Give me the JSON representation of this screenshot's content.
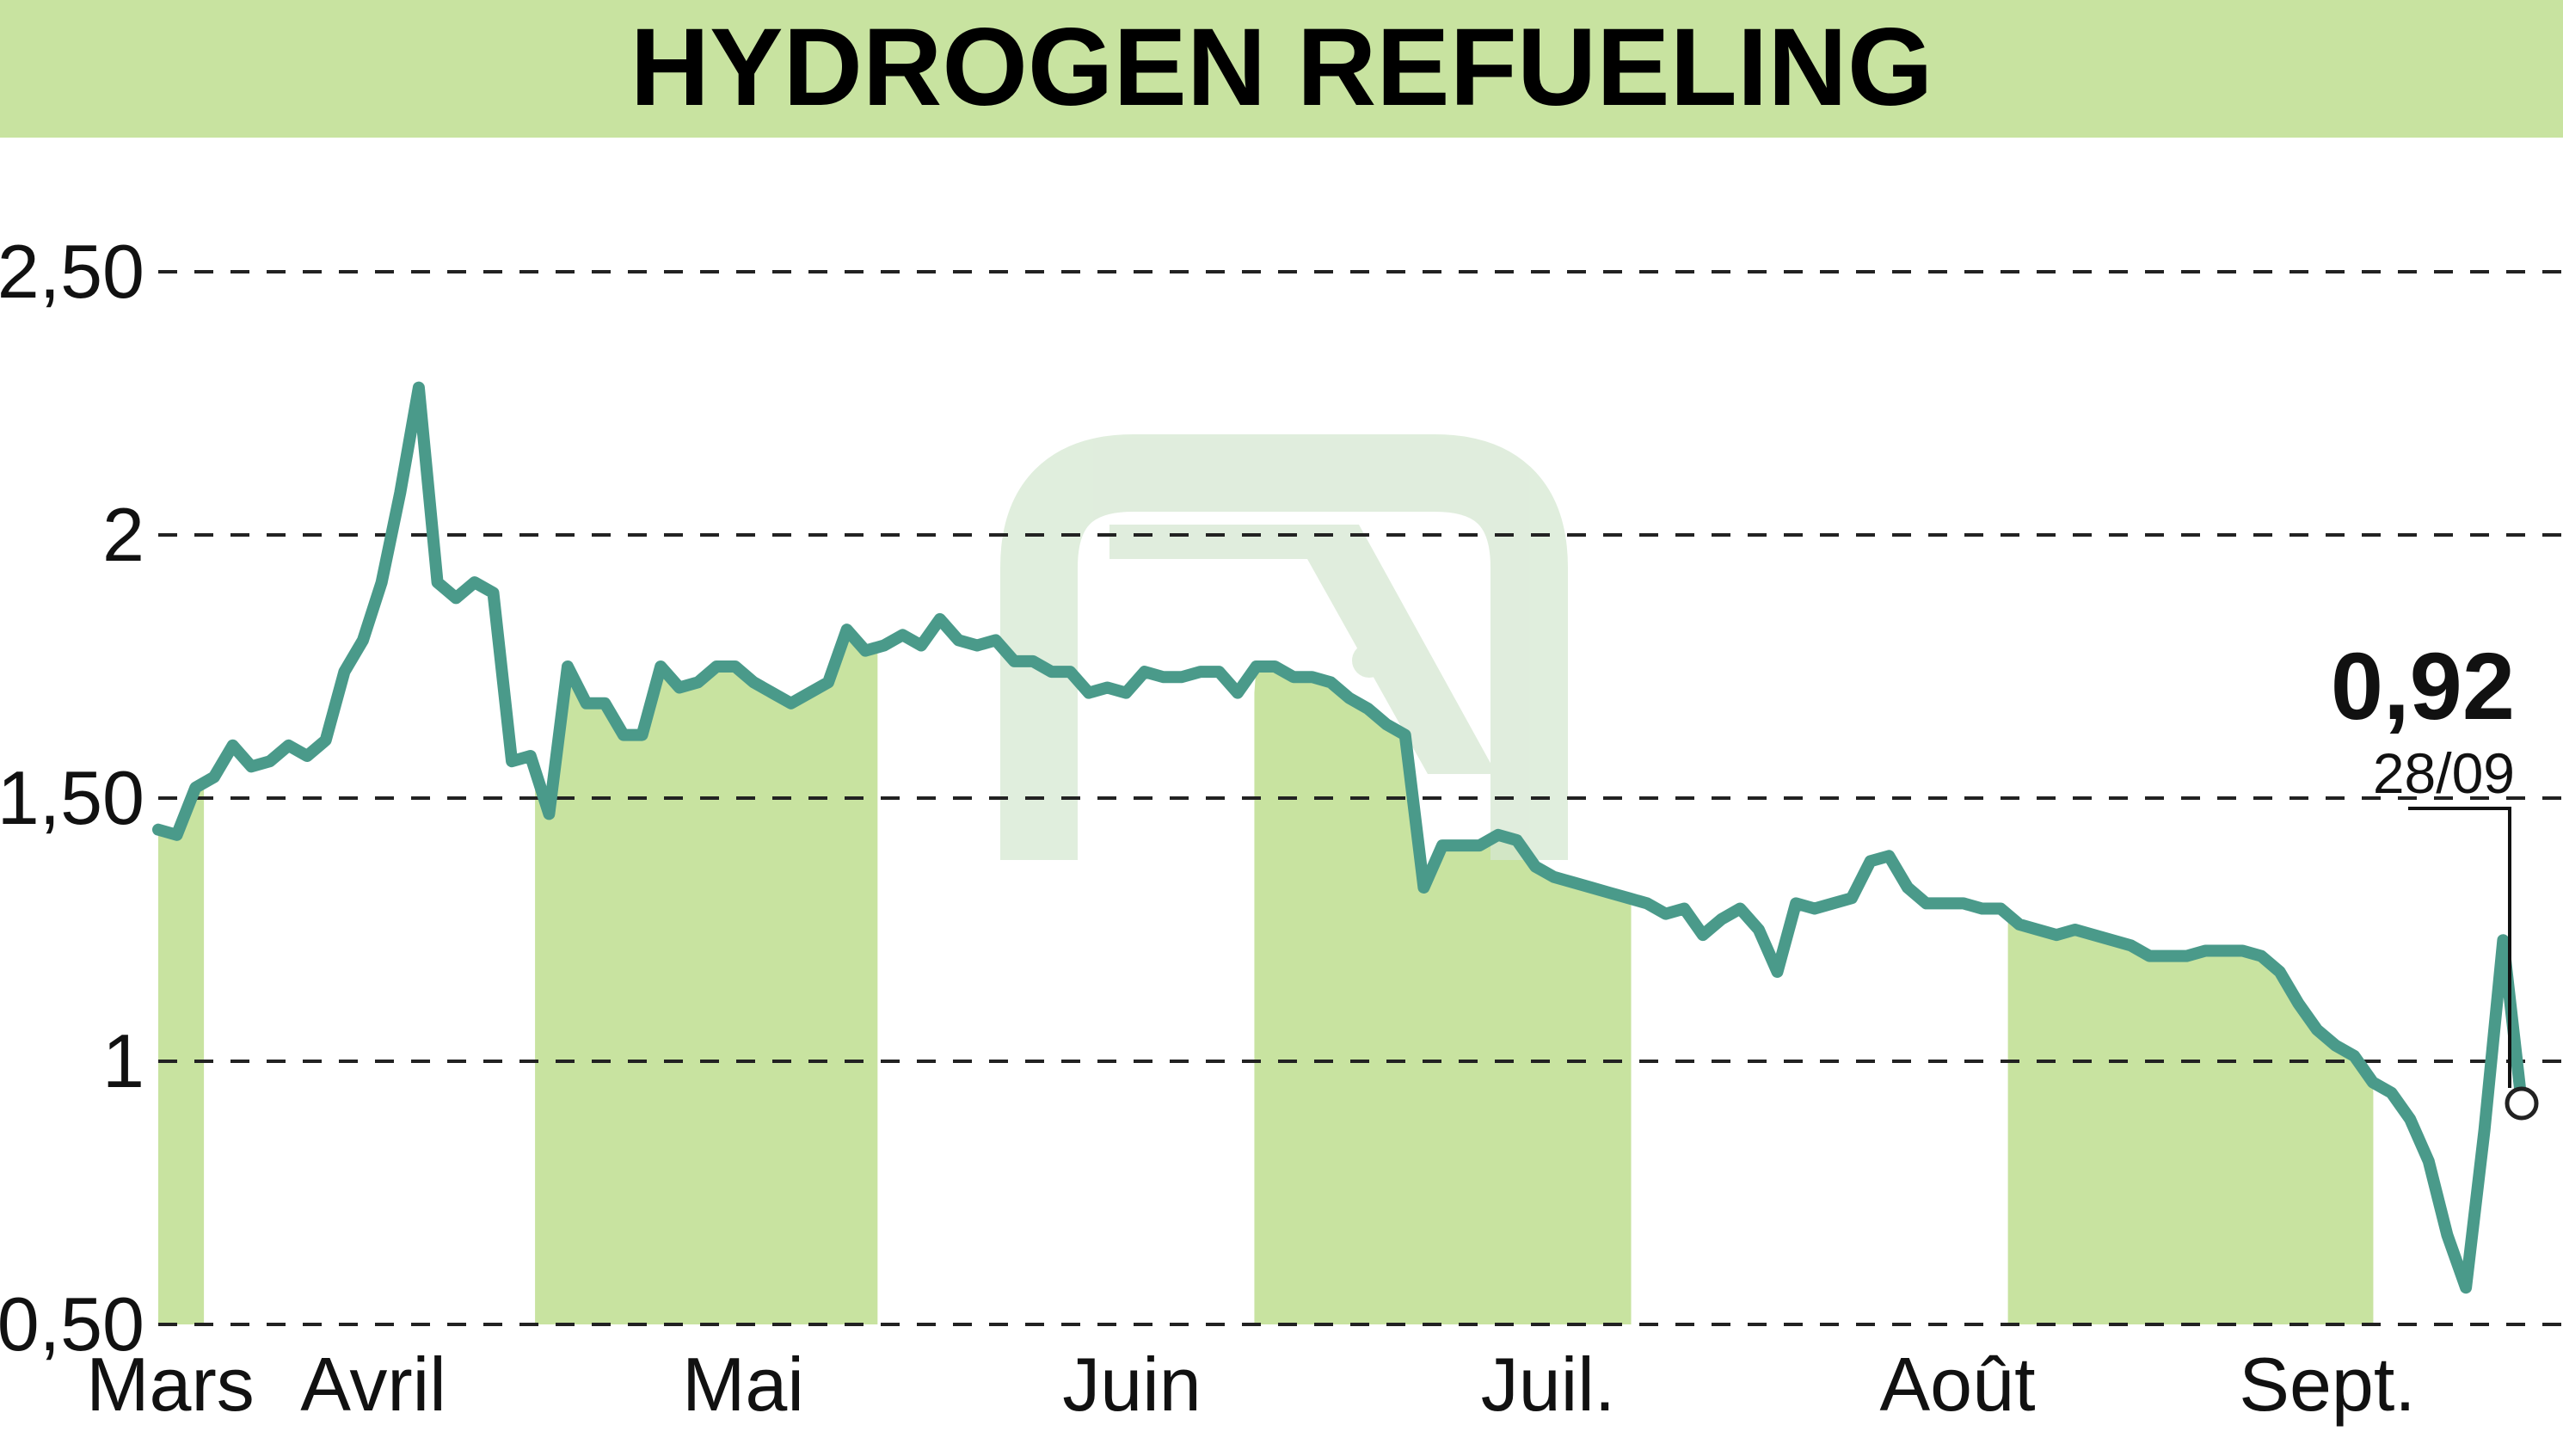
{
  "chart_data": {
    "type": "line",
    "title": "HYDROGEN REFUELING",
    "xlabel": "",
    "ylabel": "",
    "ylim": [
      0.5,
      2.5
    ],
    "y_ticks": [
      2.5,
      2,
      1.5,
      1,
      0.5
    ],
    "y_tick_labels": [
      "2,50",
      "2",
      "1,50",
      "1",
      "0,50"
    ],
    "grid": true,
    "months": [
      "Mars",
      "Avril",
      "Mai",
      "Juin",
      "Juil.",
      "Août",
      "Sept."
    ],
    "last_value_label": "0,92",
    "last_date_label": "28/09",
    "colors": {
      "line": "#4a9a8a",
      "band": "#c8e3a0",
      "header": "#c8e3a0",
      "watermark": "#d6e8d2",
      "grid": "#222222"
    },
    "series": [
      {
        "values": [
          1.44,
          1.43,
          1.52,
          1.54,
          1.6,
          1.56,
          1.57,
          1.6,
          1.58,
          1.61,
          1.74,
          1.8,
          1.91,
          2.08,
          2.28,
          1.91,
          1.88,
          1.91,
          1.89,
          1.57,
          1.58,
          1.47,
          1.75,
          1.68,
          1.68,
          1.62,
          1.62,
          1.75,
          1.71,
          1.72,
          1.75,
          1.75,
          1.72,
          1.7,
          1.68,
          1.7,
          1.72,
          1.82,
          1.78,
          1.79,
          1.81,
          1.79,
          1.84,
          1.8,
          1.79,
          1.8,
          1.76,
          1.76,
          1.74,
          1.74,
          1.7,
          1.71,
          1.7,
          1.74,
          1.73,
          1.73,
          1.74,
          1.74,
          1.7,
          1.75,
          1.75,
          1.73,
          1.73,
          1.72,
          1.69,
          1.67,
          1.64,
          1.62,
          1.33,
          1.41,
          1.41,
          1.41,
          1.43,
          1.42,
          1.37,
          1.35,
          1.34,
          1.33,
          1.32,
          1.31,
          1.3,
          1.28,
          1.29,
          1.24,
          1.27,
          1.29,
          1.25,
          1.17,
          1.3,
          1.29,
          1.3,
          1.31,
          1.38,
          1.39,
          1.33,
          1.3,
          1.3,
          1.3,
          1.29,
          1.29,
          1.26,
          1.25,
          1.24,
          1.25,
          1.24,
          1.23,
          1.22,
          1.2,
          1.2,
          1.2,
          1.21,
          1.21,
          1.21,
          1.2,
          1.17,
          1.11,
          1.06,
          1.03,
          1.01,
          0.96,
          0.94,
          0.89,
          0.81,
          0.67,
          0.57,
          0.87,
          1.23,
          0.92
        ]
      }
    ],
    "month_bands": [
      [
        0,
        4
      ],
      [
        33,
        63
      ],
      [
        96,
        129
      ],
      [
        162,
        194
      ]
    ]
  }
}
